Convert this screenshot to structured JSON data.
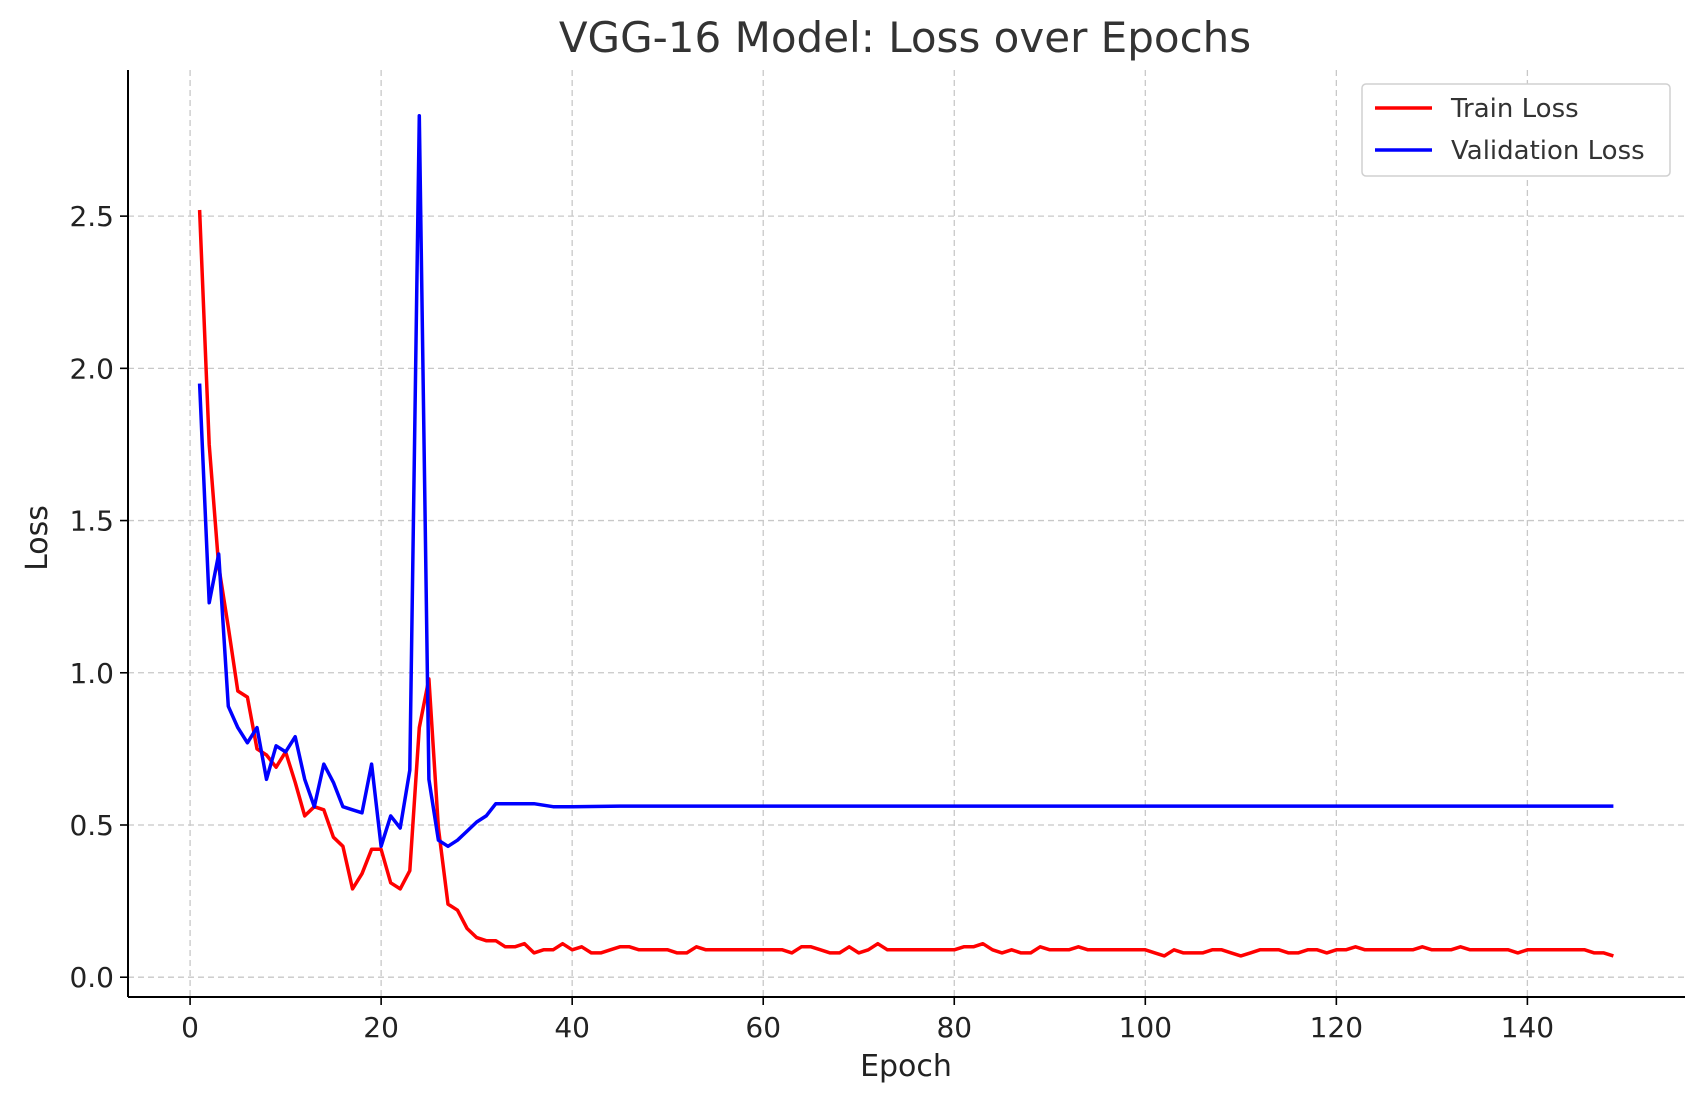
{
  "chart_data": {
    "type": "line",
    "title": "VGG-16 Model: Loss over Epochs",
    "xlabel": "Epoch",
    "ylabel": "Loss",
    "xlim": [
      -6.5,
      156.5
    ],
    "ylim": [
      -0.065,
      2.98
    ],
    "xticks": [
      0,
      20,
      40,
      60,
      80,
      100,
      120,
      140
    ],
    "xtick_labels": [
      "0",
      "20",
      "40",
      "60",
      "80",
      "100",
      "120",
      "140"
    ],
    "yticks": [
      0.0,
      0.5,
      1.0,
      1.5,
      2.0,
      2.5
    ],
    "ytick_labels": [
      "0.0",
      "0.5",
      "1.0",
      "1.5",
      "2.0",
      "2.5"
    ],
    "grid": true,
    "legend_position": "top-right",
    "series": [
      {
        "name": "Train Loss",
        "color": "#ff0000",
        "x": [
          1,
          2,
          3,
          4,
          5,
          6,
          7,
          8,
          9,
          10,
          11,
          12,
          13,
          14,
          15,
          16,
          17,
          18,
          19,
          20,
          21,
          22,
          23,
          24,
          25,
          26,
          27,
          28,
          29,
          30,
          31,
          32,
          33,
          34,
          35,
          36,
          37,
          38,
          39,
          40,
          41,
          42,
          43,
          44,
          45,
          46,
          47,
          48,
          49,
          50,
          51,
          52,
          53,
          54,
          55,
          56,
          57,
          58,
          59,
          60,
          61,
          62,
          63,
          64,
          65,
          66,
          67,
          68,
          69,
          70,
          71,
          72,
          73,
          74,
          75,
          76,
          77,
          78,
          79,
          80,
          81,
          82,
          83,
          84,
          85,
          86,
          87,
          88,
          89,
          90,
          91,
          92,
          93,
          94,
          95,
          96,
          97,
          98,
          99,
          100,
          101,
          102,
          103,
          104,
          105,
          106,
          107,
          108,
          109,
          110,
          111,
          112,
          113,
          114,
          115,
          116,
          117,
          118,
          119,
          120,
          121,
          122,
          123,
          124,
          125,
          126,
          127,
          128,
          129,
          130,
          131,
          132,
          133,
          134,
          135,
          136,
          137,
          138,
          139,
          140,
          141,
          142,
          143,
          144,
          145,
          146,
          147,
          148,
          149
        ],
        "values": [
          2.52,
          1.75,
          1.35,
          1.15,
          0.94,
          0.92,
          0.75,
          0.73,
          0.69,
          0.74,
          0.64,
          0.53,
          0.56,
          0.55,
          0.46,
          0.43,
          0.29,
          0.34,
          0.42,
          0.42,
          0.31,
          0.29,
          0.35,
          0.82,
          0.98,
          0.49,
          0.24,
          0.22,
          0.16,
          0.13,
          0.12,
          0.12,
          0.1,
          0.1,
          0.11,
          0.08,
          0.09,
          0.09,
          0.11,
          0.09,
          0.1,
          0.08,
          0.08,
          0.09,
          0.1,
          0.1,
          0.09,
          0.09,
          0.09,
          0.09,
          0.08,
          0.08,
          0.1,
          0.09,
          0.09,
          0.09,
          0.09,
          0.09,
          0.09,
          0.09,
          0.09,
          0.09,
          0.08,
          0.1,
          0.1,
          0.09,
          0.08,
          0.08,
          0.1,
          0.08,
          0.09,
          0.11,
          0.09,
          0.09,
          0.09,
          0.09,
          0.09,
          0.09,
          0.09,
          0.09,
          0.1,
          0.1,
          0.11,
          0.09,
          0.08,
          0.09,
          0.08,
          0.08,
          0.1,
          0.09,
          0.09,
          0.09,
          0.1,
          0.09,
          0.09,
          0.09,
          0.09,
          0.09,
          0.09,
          0.09,
          0.08,
          0.07,
          0.09,
          0.08,
          0.08,
          0.08,
          0.09,
          0.09,
          0.08,
          0.07,
          0.08,
          0.09,
          0.09,
          0.09,
          0.08,
          0.08,
          0.09,
          0.09,
          0.08,
          0.09,
          0.09,
          0.1,
          0.09,
          0.09,
          0.09,
          0.09,
          0.09,
          0.09,
          0.1,
          0.09,
          0.09,
          0.09,
          0.1,
          0.09,
          0.09,
          0.09,
          0.09,
          0.09,
          0.08,
          0.09,
          0.09,
          0.09,
          0.09,
          0.09,
          0.09,
          0.09,
          0.08,
          0.08,
          0.07
        ]
      },
      {
        "name": "Validation Loss",
        "color": "#0000ff",
        "x": [
          1,
          2,
          3,
          4,
          5,
          6,
          7,
          8,
          9,
          10,
          11,
          12,
          13,
          14,
          15,
          16,
          17,
          18,
          19,
          20,
          21,
          22,
          23,
          24,
          25,
          26,
          27,
          28,
          29,
          30,
          31,
          32,
          33,
          34,
          35,
          36,
          37,
          38,
          39,
          40,
          45,
          50,
          60,
          80,
          100,
          120,
          140,
          149
        ],
        "values": [
          1.95,
          1.23,
          1.39,
          0.89,
          0.82,
          0.77,
          0.82,
          0.65,
          0.76,
          0.74,
          0.79,
          0.65,
          0.56,
          0.7,
          0.64,
          0.56,
          0.55,
          0.54,
          0.7,
          0.43,
          0.53,
          0.49,
          0.68,
          2.83,
          0.65,
          0.45,
          0.43,
          0.45,
          0.48,
          0.51,
          0.53,
          0.57,
          0.57,
          0.57,
          0.57,
          0.57,
          0.565,
          0.56,
          0.56,
          0.56,
          0.562,
          0.562,
          0.562,
          0.562,
          0.562,
          0.562,
          0.562,
          0.562
        ]
      }
    ]
  }
}
